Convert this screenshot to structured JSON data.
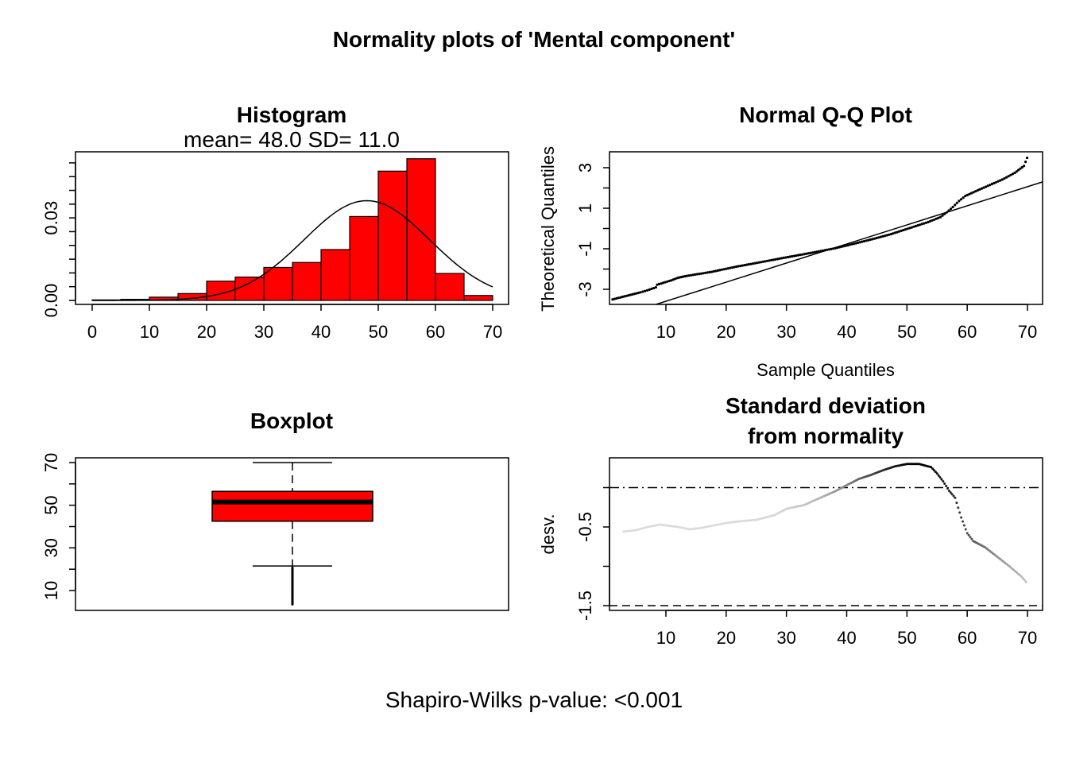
{
  "figure": {
    "title": "Normality plots of 'Mental component'",
    "footer": "Shapiro-Wilks p-value: <0.001"
  },
  "chart_data": [
    {
      "type": "bar",
      "panel": "histogram",
      "title": "Histogram",
      "subtitle": "mean= 48.0  SD= 11.0",
      "fill_color": "#ff0000",
      "x_ticks": [
        "0",
        "10",
        "20",
        "30",
        "40",
        "50",
        "60",
        "70"
      ],
      "y_ticks": [
        "0.00",
        "0.03"
      ],
      "xlim": [
        0,
        70
      ],
      "ylim": [
        0,
        0.052
      ],
      "bins": [
        {
          "from": 0,
          "to": 5,
          "density": 0.0002
        },
        {
          "from": 5,
          "to": 10,
          "density": 0.0004
        },
        {
          "from": 10,
          "to": 15,
          "density": 0.0012
        },
        {
          "from": 15,
          "to": 20,
          "density": 0.0025
        },
        {
          "from": 20,
          "to": 25,
          "density": 0.007
        },
        {
          "from": 25,
          "to": 30,
          "density": 0.0085
        },
        {
          "from": 30,
          "to": 35,
          "density": 0.012
        },
        {
          "from": 35,
          "to": 40,
          "density": 0.0138
        },
        {
          "from": 40,
          "to": 45,
          "density": 0.0185
        },
        {
          "from": 45,
          "to": 50,
          "density": 0.0305
        },
        {
          "from": 50,
          "to": 55,
          "density": 0.047
        },
        {
          "from": 55,
          "to": 60,
          "density": 0.0515
        },
        {
          "from": 60,
          "to": 65,
          "density": 0.0098
        },
        {
          "from": 65,
          "to": 70,
          "density": 0.0018
        }
      ],
      "normal_curve": {
        "mean": 48.0,
        "sd": 11.0
      }
    },
    {
      "type": "scatter",
      "panel": "qq",
      "title": "Normal Q-Q Plot",
      "xlabel": "Sample Quantiles",
      "ylabel": "Theoretical Quantiles",
      "x_ticks": [
        "10",
        "20",
        "30",
        "40",
        "50",
        "60",
        "70"
      ],
      "y_ticks": [
        "-3",
        "-1",
        "1",
        "3"
      ],
      "xlim": [
        2.5,
        72.5
      ],
      "ylim": [
        -3.8,
        3.8
      ],
      "points": [
        [
          3,
          -3.55
        ],
        [
          7.5,
          -3.2
        ],
        [
          8.6,
          -3.1
        ],
        [
          10,
          -2.95
        ],
        [
          10.2,
          -2.82
        ],
        [
          12.5,
          -2.6
        ],
        [
          13.5,
          -2.48
        ],
        [
          15,
          -2.38
        ],
        [
          17,
          -2.28
        ],
        [
          19,
          -2.18
        ],
        [
          21,
          -2.05
        ],
        [
          23,
          -1.92
        ],
        [
          26,
          -1.75
        ],
        [
          30,
          -1.52
        ],
        [
          33,
          -1.35
        ],
        [
          36,
          -1.18
        ],
        [
          39,
          -1.0
        ],
        [
          42,
          -0.78
        ],
        [
          45,
          -0.55
        ],
        [
          48,
          -0.3
        ],
        [
          51,
          0.0
        ],
        [
          54,
          0.3
        ],
        [
          56,
          0.55
        ],
        [
          57,
          0.78
        ],
        [
          58,
          1.05
        ],
        [
          59,
          1.35
        ],
        [
          60,
          1.6
        ],
        [
          62,
          1.88
        ],
        [
          64,
          2.15
        ],
        [
          66,
          2.42
        ],
        [
          68,
          2.75
        ],
        [
          69.5,
          3.1
        ],
        [
          70,
          3.5
        ]
      ],
      "reference_line": {
        "x1": 10,
        "y1": -3.8,
        "x2": 72.5,
        "y2": 2.3
      }
    },
    {
      "type": "boxplot",
      "panel": "boxplot",
      "title": "Boxplot",
      "fill_color": "#ff0000",
      "y_ticks": [
        "10",
        "30",
        "50",
        "70"
      ],
      "ylim": [
        2.5,
        72.5
      ],
      "whisker_high": 70,
      "q3": 56.5,
      "median": 51.5,
      "q1": 42.5,
      "whisker_low": 21.5,
      "outliers": [
        3.5,
        7.0,
        9.0,
        10.5,
        12.0,
        13.5,
        15.0,
        16.0,
        17.0,
        18.0,
        19.0,
        20.0,
        21.0
      ]
    },
    {
      "type": "line",
      "panel": "deviation",
      "title": "Standard deviation",
      "title_line2": "from normality",
      "ylabel": "desv.",
      "x_ticks": [
        "10",
        "20",
        "30",
        "40",
        "50",
        "60",
        "70"
      ],
      "y_ticks": [
        "-1.5",
        "-0.5"
      ],
      "xlim": [
        2.5,
        72.5
      ],
      "ylim": [
        -1.55,
        0.38
      ],
      "hline_dashdot": 0,
      "hline_dashed": -1.5,
      "points": [
        [
          3,
          -0.56
        ],
        [
          5,
          -0.54
        ],
        [
          7,
          -0.5
        ],
        [
          9,
          -0.47
        ],
        [
          10,
          -0.48
        ],
        [
          12,
          -0.5
        ],
        [
          14,
          -0.53
        ],
        [
          16,
          -0.51
        ],
        [
          18,
          -0.48
        ],
        [
          20,
          -0.45
        ],
        [
          22,
          -0.43
        ],
        [
          25,
          -0.41
        ],
        [
          28,
          -0.35
        ],
        [
          30,
          -0.27
        ],
        [
          33,
          -0.22
        ],
        [
          35,
          -0.15
        ],
        [
          38,
          -0.05
        ],
        [
          40,
          0.03
        ],
        [
          42,
          0.11
        ],
        [
          44,
          0.16
        ],
        [
          46,
          0.22
        ],
        [
          48,
          0.27
        ],
        [
          50,
          0.3
        ],
        [
          52,
          0.3
        ],
        [
          54,
          0.26
        ],
        [
          55,
          0.18
        ],
        [
          56,
          0.08
        ],
        [
          57,
          -0.04
        ],
        [
          58,
          -0.13
        ],
        [
          59,
          -0.38
        ],
        [
          60,
          -0.58
        ],
        [
          61,
          -0.68
        ],
        [
          63,
          -0.76
        ],
        [
          65,
          -0.88
        ],
        [
          67,
          -1.0
        ],
        [
          69,
          -1.13
        ],
        [
          70,
          -1.22
        ]
      ]
    }
  ]
}
